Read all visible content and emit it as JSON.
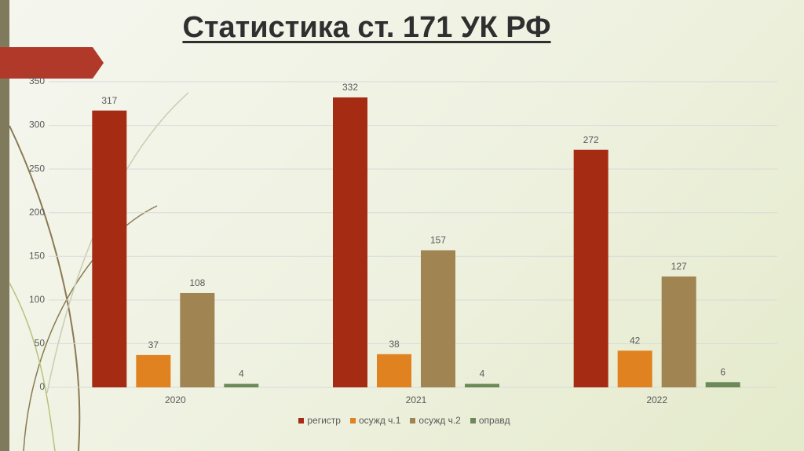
{
  "chart_data": {
    "type": "bar",
    "title": "Статистика ст. 171 УК РФ",
    "categories": [
      "2020",
      "2021",
      "2022"
    ],
    "series": [
      {
        "name": "регистр",
        "color": "#a52c12",
        "values": [
          317,
          332,
          272
        ]
      },
      {
        "name": "осужд ч.1",
        "color": "#e0821f",
        "values": [
          37,
          38,
          42
        ]
      },
      {
        "name": "осужд ч.2",
        "color": "#a08552",
        "values": [
          108,
          157,
          127
        ]
      },
      {
        "name": "оправд",
        "color": "#6b8a58",
        "values": [
          4,
          4,
          6
        ]
      }
    ],
    "ylim": [
      0,
      350
    ],
    "yticks": [
      0,
      50,
      100,
      150,
      200,
      250,
      300,
      350
    ],
    "grid": true,
    "legend": "bottom"
  }
}
